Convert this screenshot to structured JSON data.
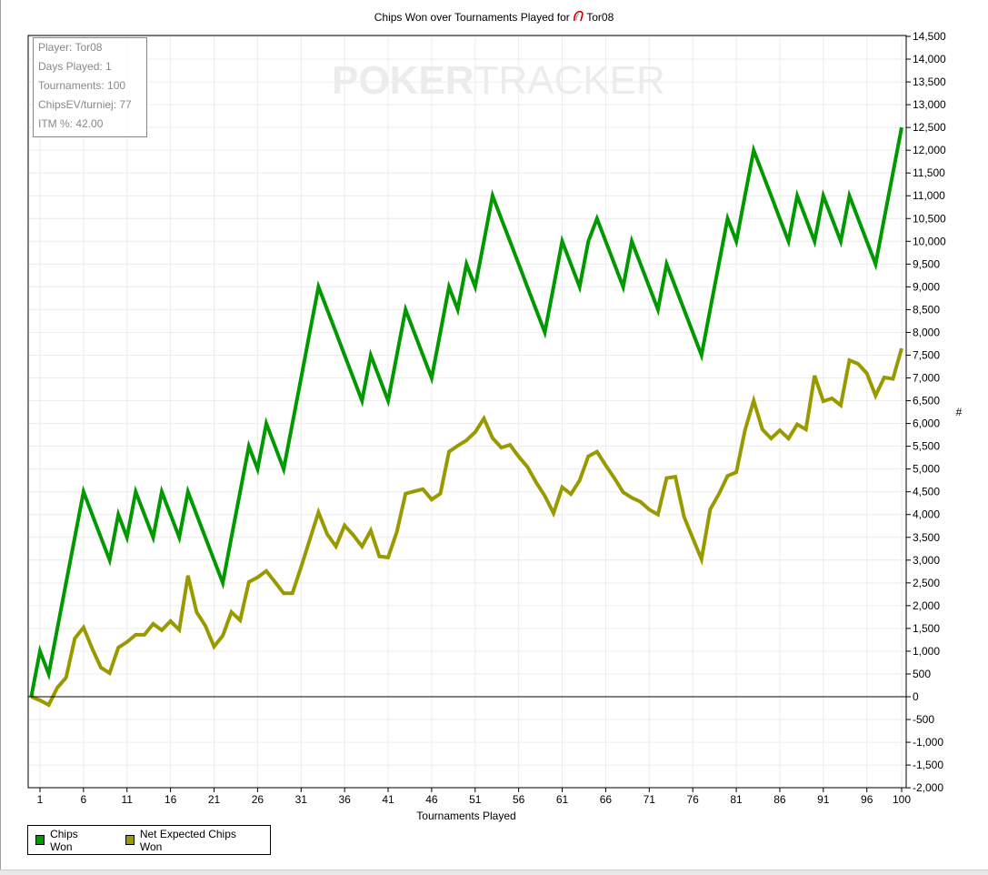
{
  "chart_data": {
    "type": "line",
    "title": "Chips Won over Tournaments Played for",
    "player_name": "Tor08",
    "xlabel": "Tournaments Played",
    "ylabel": "#",
    "xlim": [
      0,
      100
    ],
    "ylim": [
      -2000,
      14500
    ],
    "x_ticks": [
      1,
      6,
      11,
      16,
      21,
      26,
      31,
      36,
      41,
      46,
      51,
      56,
      61,
      66,
      71,
      76,
      81,
      86,
      91,
      96,
      100
    ],
    "y_ticks": [
      -2000,
      -1500,
      -1000,
      -500,
      0,
      500,
      1000,
      1500,
      2000,
      2500,
      3000,
      3500,
      4000,
      4500,
      5000,
      5500,
      6000,
      6500,
      7000,
      7500,
      8000,
      8500,
      9000,
      9500,
      10000,
      10500,
      11000,
      11500,
      12000,
      12500,
      13000,
      13500,
      14000,
      14500
    ],
    "grid": true,
    "legend_position": "bottom-left",
    "x": [
      0,
      1,
      2,
      3,
      4,
      5,
      6,
      7,
      8,
      9,
      10,
      11,
      12,
      13,
      14,
      15,
      16,
      17,
      18,
      19,
      20,
      21,
      22,
      23,
      24,
      25,
      26,
      27,
      28,
      29,
      30,
      31,
      32,
      33,
      34,
      35,
      36,
      37,
      38,
      39,
      40,
      41,
      42,
      43,
      44,
      45,
      46,
      47,
      48,
      49,
      50,
      51,
      52,
      53,
      54,
      55,
      56,
      57,
      58,
      59,
      60,
      61,
      62,
      63,
      64,
      65,
      66,
      67,
      68,
      69,
      70,
      71,
      72,
      73,
      74,
      75,
      76,
      77,
      78,
      79,
      80,
      81,
      82,
      83,
      84,
      85,
      86,
      87,
      88,
      89,
      90,
      91,
      92,
      93,
      94,
      95,
      96,
      97,
      98,
      99,
      100
    ],
    "series": [
      {
        "name": "Chips Won",
        "color": "#009900",
        "values": [
          0,
          1000,
          500,
          1500,
          2500,
          3500,
          4500,
          4000,
          3500,
          3000,
          4000,
          3500,
          4500,
          4000,
          3500,
          4500,
          4000,
          3500,
          4500,
          4000,
          3500,
          3000,
          2500,
          3500,
          4500,
          5500,
          5000,
          6000,
          5500,
          5000,
          6000,
          7000,
          8000,
          9000,
          8500,
          8000,
          7500,
          7000,
          6500,
          7500,
          7000,
          6500,
          7500,
          8500,
          8000,
          7500,
          7000,
          8000,
          9000,
          8500,
          9500,
          9000,
          10000,
          11000,
          10500,
          10000,
          9500,
          9000,
          8500,
          8000,
          9000,
          10000,
          9500,
          9000,
          10000,
          10500,
          10000,
          9500,
          9000,
          10000,
          9500,
          9000,
          8500,
          9500,
          9000,
          8500,
          8000,
          7500,
          8500,
          9500,
          10500,
          10000,
          11000,
          12000,
          11500,
          11000,
          10500,
          10000,
          11000,
          10500,
          10000,
          11000,
          10500,
          10000,
          11000,
          10500,
          10000,
          9500,
          10500,
          11500,
          12500
        ]
      },
      {
        "name": "Net Expected Chips Won",
        "color": "#999900",
        "values": [
          0,
          -80,
          -180,
          200,
          420,
          1280,
          1520,
          1060,
          640,
          520,
          1080,
          1200,
          1360,
          1360,
          1600,
          1460,
          1660,
          1470,
          2660,
          1860,
          1560,
          1100,
          1340,
          1860,
          1680,
          2520,
          2620,
          2760,
          2520,
          2270,
          2270,
          2850,
          3450,
          4050,
          3570,
          3300,
          3760,
          3550,
          3300,
          3650,
          3080,
          3060,
          3620,
          4460,
          4510,
          4560,
          4330,
          4460,
          5380,
          5510,
          5630,
          5810,
          6110,
          5680,
          5470,
          5530,
          5270,
          5050,
          4710,
          4410,
          4030,
          4600,
          4450,
          4750,
          5280,
          5380,
          5080,
          4800,
          4490,
          4370,
          4280,
          4110,
          4000,
          4800,
          4830,
          3950,
          3480,
          3020,
          4110,
          4450,
          4850,
          4930,
          5850,
          6500,
          5870,
          5670,
          5850,
          5670,
          5980,
          5870,
          7050,
          6490,
          6550,
          6400,
          7390,
          7310,
          7100,
          6610,
          7010,
          6980,
          7650
        ]
      }
    ]
  },
  "info_box": {
    "lines": [
      "Player: Tor08",
      "Days Played: 1",
      "Tournaments: 100",
      "ChipsEV/turniej: 77",
      "ITM %: 42.00"
    ]
  },
  "watermark": {
    "bold": "POKER",
    "thin": "TRACKER"
  },
  "legend": {
    "items": [
      "Chips Won",
      "Net Expected Chips Won"
    ]
  },
  "icons": {
    "title_icon": "pokerstars-logo-icon"
  }
}
